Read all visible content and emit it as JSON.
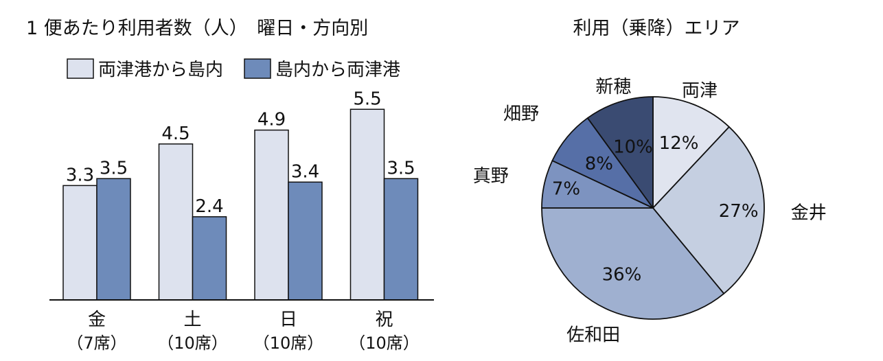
{
  "colors": {
    "series1": "#dde2ee",
    "series2": "#6e8bba",
    "stroke": "#111111",
    "pie": [
      "#e0e4ef",
      "#c5cfe1",
      "#9fb0d0",
      "#7d93c0",
      "#566fa7",
      "#3a4b72"
    ]
  },
  "chart_data": [
    {
      "type": "bar",
      "title": "1 便あたり利用者数（人）　曜日・方向別",
      "categories": [
        "金",
        "土",
        "日",
        "祝"
      ],
      "category_sublabels": [
        "（7席）",
        "（10席）",
        "（10席）",
        "（10席）"
      ],
      "series": [
        {
          "name": "両津港から島内",
          "values": [
            3.3,
            4.5,
            4.9,
            5.5
          ]
        },
        {
          "name": "島内から両津港",
          "values": [
            3.5,
            2.4,
            3.4,
            3.5
          ]
        }
      ],
      "value_labels": [
        [
          "3.3",
          "4.5",
          "4.9",
          "5.5"
        ],
        [
          "3.5",
          "2.4",
          "3.4",
          "3.5"
        ]
      ],
      "ylim": [
        0,
        6
      ],
      "legend_position": "top",
      "grid": false
    },
    {
      "type": "pie",
      "title": "利用（乗降）エリア",
      "labels": [
        "両津",
        "金井",
        "佐和田",
        "真野",
        "畑野",
        "新穂"
      ],
      "values": [
        12,
        27,
        36,
        7,
        8,
        10
      ],
      "value_labels": [
        "12%",
        "27%",
        "36%",
        "7%",
        "8%",
        "10%"
      ],
      "start": "top",
      "direction": "clockwise"
    }
  ]
}
